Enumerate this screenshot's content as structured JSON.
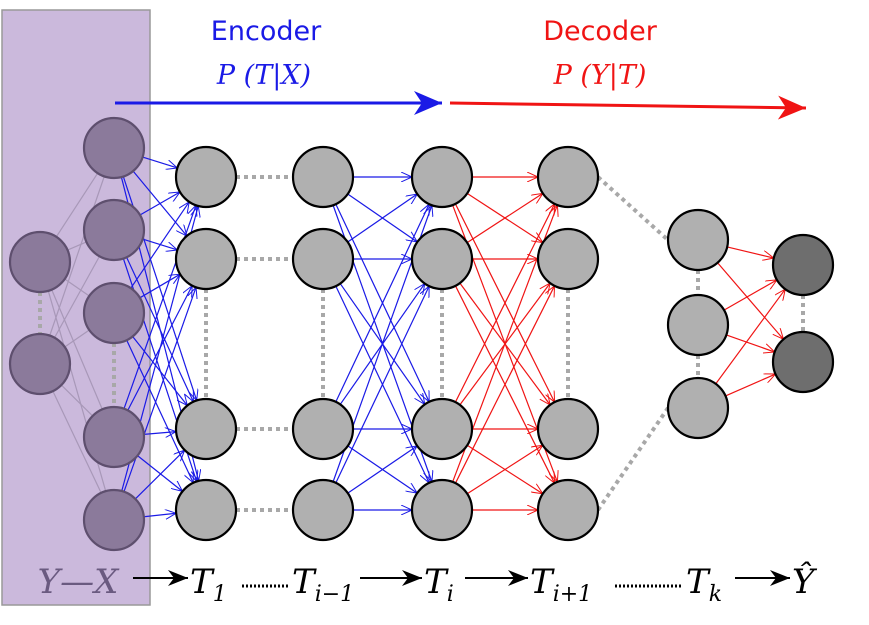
{
  "encoder": {
    "title": "Encoder",
    "formula": "P (T|X)",
    "color": "#1a1ae6"
  },
  "decoder": {
    "title": "Decoder",
    "formula": "P (Y|T)",
    "color": "#f01414"
  },
  "input_panel_color": "#cbb9dc",
  "sequence": [
    {
      "main": "Y—X",
      "sub": ""
    },
    {
      "main": "T",
      "sub": "1"
    },
    {
      "main": "T",
      "sub": "i−1"
    },
    {
      "main": "T",
      "sub": "i"
    },
    {
      "main": "T",
      "sub": "i+1"
    },
    {
      "main": "T",
      "sub": "k"
    },
    {
      "main": "Ŷ",
      "sub": ""
    }
  ]
}
